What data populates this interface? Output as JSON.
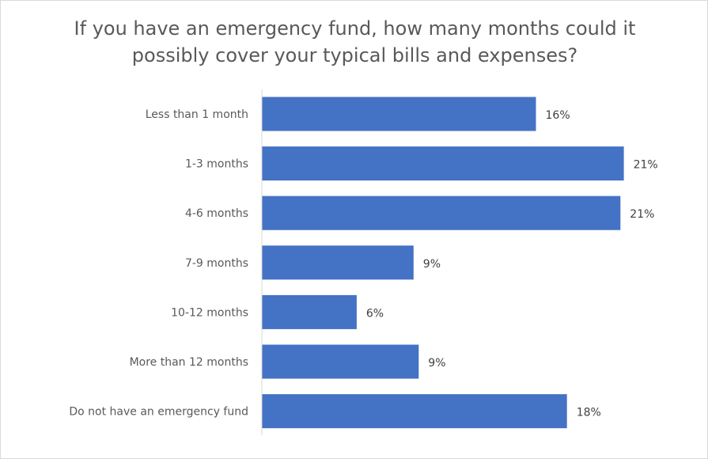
{
  "chart_data": {
    "type": "bar",
    "orientation": "horizontal",
    "title": "If you have an emergency fund, how many months could it possibly cover your typical bills and expenses?",
    "categories": [
      "Less than 1 month",
      "1-3 months",
      "4-6 months",
      "7-9 months",
      "10-12 months",
      "More than 12 months",
      "Do not have an emergency fund"
    ],
    "values": [
      16,
      21,
      21,
      9,
      6,
      9,
      18
    ],
    "true_values": [
      15.9,
      21.0,
      20.8,
      8.8,
      5.5,
      9.1,
      17.7
    ],
    "value_labels": [
      "16%",
      "21%",
      "21%",
      "9%",
      "6%",
      "9%",
      "18%"
    ],
    "bar_color": "#4472C4",
    "xlim": [
      0,
      21.2
    ],
    "grid": false,
    "legend": "none"
  }
}
